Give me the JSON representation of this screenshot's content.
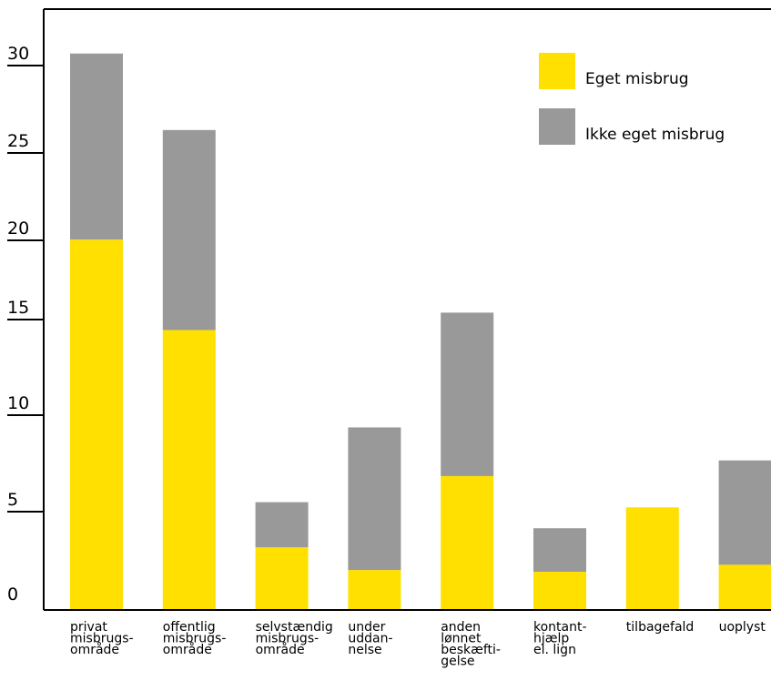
{
  "chart_data": {
    "type": "bar",
    "stacked": true,
    "categories": [
      [
        "privat",
        "misbrugs-",
        "område"
      ],
      [
        "offentlig",
        "misbrugs-",
        "område"
      ],
      [
        "selvstændig",
        "misbrugs-",
        "område"
      ],
      [
        "under",
        "uddan-",
        "nelse"
      ],
      [
        "anden",
        "lønnet",
        "beskæfti-",
        "gelse"
      ],
      [
        "kontant-",
        "hjælp",
        "el. lign"
      ],
      [
        "tilbagefald"
      ],
      [
        "uoplyst"
      ]
    ],
    "series": [
      {
        "name": "Eget misbrug",
        "color": "#FFE000",
        "values": [
          21.3,
          16.1,
          3.6,
          2.3,
          7.7,
          2.2,
          5.9,
          2.6
        ]
      },
      {
        "name": "Ikke eget misbrug",
        "color": "#999999",
        "values": [
          10.7,
          11.5,
          2.6,
          8.2,
          9.4,
          2.5,
          0.0,
          6.0
        ]
      }
    ],
    "yticks": [
      0,
      5,
      10,
      15,
      20,
      25,
      30
    ],
    "ylim": [
      0,
      32
    ],
    "legend": "top-right",
    "grid": false
  }
}
